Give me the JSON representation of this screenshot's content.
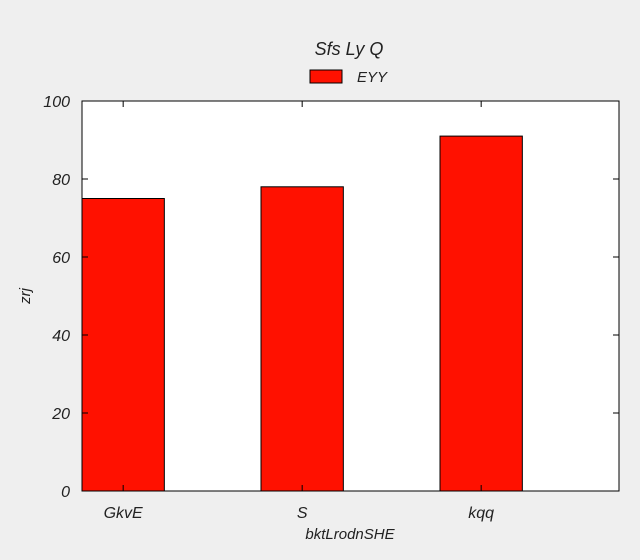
{
  "chart_data": {
    "type": "bar",
    "title": "Sfs Ly Q",
    "xlabel": "bktLrodnSHE",
    "ylabel": "zrj",
    "categories": [
      "GkvE",
      "S",
      "kqq"
    ],
    "series": [
      {
        "name": "EYY",
        "values": [
          75,
          78,
          91
        ],
        "color": "#ff1100"
      }
    ],
    "ylim": [
      0,
      100
    ],
    "yticks": [
      0,
      20,
      40,
      60,
      80,
      100
    ],
    "grid": false,
    "legend_position": "top-center"
  }
}
